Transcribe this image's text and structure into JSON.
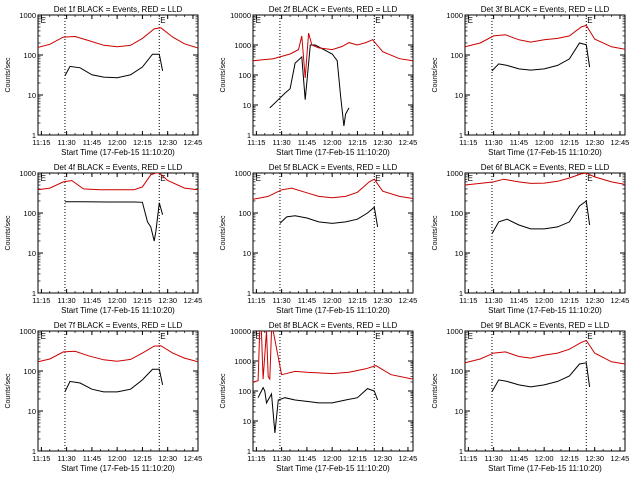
{
  "chart_data": [
    {
      "type": "line",
      "title": "Det 1f BLACK = Events, RED = LLD",
      "xlabel": "Start Time (17-Feb-15 11:10:20)",
      "ylabel": "Counts/sec",
      "y_scale": "log",
      "ylim": [
        1,
        1000
      ],
      "xlim": [
        "11:13",
        "12:48"
      ],
      "x_ticks": [
        "11:15",
        "11:30",
        "11:45",
        "12:00",
        "12:15",
        "12:30",
        "12:45"
      ],
      "y_ticks": [
        "1",
        "10",
        "100",
        "1000"
      ],
      "vertical_dotted_lines": [
        "11:29",
        "12:25"
      ],
      "markers": [
        {
          "label": "E",
          "x": "11:14"
        },
        {
          "label": "E",
          "x": "12:25"
        }
      ],
      "series": [
        {
          "color": "#000000",
          "x": [
            "11:29",
            "11:32",
            "11:38",
            "11:45",
            "11:52",
            "12:00",
            "12:08",
            "12:15",
            "12:21",
            "12:25",
            "12:27"
          ],
          "values": [
            30,
            52,
            48,
            32,
            28,
            27,
            32,
            50,
            105,
            105,
            40
          ]
        },
        {
          "color": "#cc0000",
          "x": [
            "11:13",
            "11:20",
            "11:28",
            "11:35",
            "11:43",
            "11:52",
            "12:00",
            "12:08",
            "12:15",
            "12:22",
            "12:26",
            "12:33",
            "12:40",
            "12:48"
          ],
          "values": [
            155,
            185,
            280,
            290,
            230,
            175,
            160,
            175,
            260,
            450,
            480,
            280,
            190,
            150
          ]
        }
      ]
    },
    {
      "type": "line",
      "title": "Det 2f BLACK = Events, RED = LLD",
      "xlabel": "Start Time (17-Feb-15 11:10:20)",
      "ylabel": "Counts/sec",
      "y_scale": "log",
      "ylim": [
        1,
        10000
      ],
      "xlim": [
        "11:13",
        "12:48"
      ],
      "x_ticks": [
        "11:15",
        "11:30",
        "11:45",
        "12:00",
        "12:15",
        "12:30",
        "12:45"
      ],
      "y_ticks": [
        "1",
        "10",
        "100",
        "1000",
        "10000"
      ],
      "vertical_dotted_lines": [
        "11:29",
        "12:25"
      ],
      "markers": [
        {
          "label": "E",
          "x": "11:14"
        },
        {
          "label": "E",
          "x": "12:25"
        }
      ],
      "series": [
        {
          "color": "#000000",
          "x": [
            "11:23",
            "11:28",
            "11:32",
            "11:35",
            "11:38",
            "11:42",
            "11:44",
            "11:45",
            "11:47",
            "11:50",
            "11:55",
            "12:00",
            "12:03",
            "12:05",
            "12:07",
            "12:08",
            "12:10"
          ],
          "values": [
            8,
            15,
            25,
            35,
            250,
            400,
            15,
            60,
            1000,
            1000,
            700,
            500,
            300,
            20,
            2,
            5,
            8
          ]
        },
        {
          "color": "#cc0000",
          "x": [
            "11:13",
            "11:25",
            "11:35",
            "11:40",
            "11:42",
            "11:44",
            "11:46",
            "11:48",
            "11:52",
            "12:00",
            "12:06",
            "12:10",
            "12:15",
            "12:20",
            "12:24",
            "12:30",
            "12:40",
            "12:48"
          ],
          "values": [
            300,
            350,
            500,
            700,
            2000,
            80,
            2500,
            1000,
            800,
            700,
            900,
            1200,
            1000,
            1200,
            1500,
            600,
            350,
            300
          ]
        }
      ]
    },
    {
      "type": "line",
      "title": "Det 3f BLACK = Events, RED = LLD",
      "xlabel": "Start Time (17-Feb-15 11:10:20)",
      "ylabel": "Counts/sec",
      "y_scale": "log",
      "ylim": [
        1,
        1000
      ],
      "xlim": [
        "11:13",
        "12:48"
      ],
      "x_ticks": [
        "11:15",
        "11:30",
        "11:45",
        "12:00",
        "12:15",
        "12:30",
        "12:45"
      ],
      "y_ticks": [
        "1",
        "10",
        "100",
        "1000"
      ],
      "vertical_dotted_lines": [
        "11:29",
        "12:25"
      ],
      "markers": [
        {
          "label": "E",
          "x": "11:14"
        },
        {
          "label": "E",
          "x": "12:25"
        }
      ],
      "series": [
        {
          "color": "#000000",
          "x": [
            "11:29",
            "11:33",
            "11:38",
            "11:45",
            "11:52",
            "12:00",
            "12:08",
            "12:15",
            "12:21",
            "12:25",
            "12:27"
          ],
          "values": [
            40,
            60,
            55,
            45,
            42,
            45,
            55,
            80,
            200,
            180,
            50
          ]
        },
        {
          "color": "#cc0000",
          "x": [
            "11:13",
            "11:22",
            "11:30",
            "11:37",
            "11:45",
            "11:52",
            "12:00",
            "12:08",
            "12:15",
            "12:22",
            "12:25",
            "12:30",
            "12:40",
            "12:48"
          ],
          "values": [
            160,
            200,
            300,
            320,
            240,
            210,
            240,
            260,
            300,
            500,
            550,
            250,
            160,
            140
          ]
        }
      ]
    },
    {
      "type": "line",
      "title": "Det 4f BLACK = Events, RED = LLD",
      "xlabel": "Start Time (17-Feb-15 11:10:20)",
      "ylabel": "Counts/sec",
      "y_scale": "log",
      "ylim": [
        1,
        1000
      ],
      "xlim": [
        "11:13",
        "12:48"
      ],
      "x_ticks": [
        "11:15",
        "11:30",
        "11:45",
        "12:00",
        "12:15",
        "12:30",
        "12:45"
      ],
      "y_ticks": [
        "1",
        "10",
        "100",
        "1000"
      ],
      "vertical_dotted_lines": [
        "11:29",
        "12:25"
      ],
      "markers": [
        {
          "label": "E",
          "x": "11:14"
        },
        {
          "label": "E",
          "x": "12:25"
        }
      ],
      "series": [
        {
          "color": "#000000",
          "x": [
            "11:29",
            "11:40",
            "11:55",
            "12:10",
            "12:15",
            "12:18",
            "12:20",
            "12:22",
            "12:23",
            "12:25",
            "12:27"
          ],
          "values": [
            190,
            190,
            188,
            188,
            185,
            60,
            45,
            20,
            35,
            180,
            90
          ]
        },
        {
          "color": "#cc0000",
          "x": [
            "11:13",
            "11:20",
            "11:28",
            "11:33",
            "11:40",
            "11:50",
            "12:00",
            "12:10",
            "12:15",
            "12:20",
            "12:23",
            "12:25",
            "12:30",
            "12:40",
            "12:48"
          ],
          "values": [
            380,
            420,
            600,
            650,
            400,
            380,
            380,
            380,
            450,
            900,
            1000,
            1000,
            650,
            420,
            380
          ]
        }
      ]
    },
    {
      "type": "line",
      "title": "Det 5f BLACK = Events, RED = LLD",
      "xlabel": "Start Time (17-Feb-15 11:10:20)",
      "ylabel": "Counts/sec",
      "y_scale": "log",
      "ylim": [
        1,
        1000
      ],
      "xlim": [
        "11:13",
        "12:48"
      ],
      "x_ticks": [
        "11:15",
        "11:30",
        "11:45",
        "12:00",
        "12:15",
        "12:30",
        "12:45"
      ],
      "y_ticks": [
        "1",
        "10",
        "100",
        "1000"
      ],
      "vertical_dotted_lines": [
        "11:29",
        "12:25"
      ],
      "markers": [
        {
          "label": "E",
          "x": "11:14"
        },
        {
          "label": "E",
          "x": "12:25"
        }
      ],
      "series": [
        {
          "color": "#000000",
          "x": [
            "11:29",
            "11:33",
            "11:38",
            "11:45",
            "11:52",
            "12:00",
            "12:08",
            "12:15",
            "12:21",
            "12:25",
            "12:27"
          ],
          "values": [
            55,
            80,
            85,
            75,
            60,
            55,
            60,
            70,
            100,
            140,
            45
          ]
        },
        {
          "color": "#cc0000",
          "x": [
            "11:13",
            "11:22",
            "11:30",
            "11:36",
            "11:45",
            "11:52",
            "12:00",
            "12:08",
            "12:15",
            "12:22",
            "12:25",
            "12:30",
            "12:40",
            "12:48"
          ],
          "values": [
            220,
            260,
            380,
            420,
            320,
            260,
            240,
            260,
            330,
            600,
            700,
            350,
            260,
            230
          ]
        }
      ]
    },
    {
      "type": "line",
      "title": "Det 6f BLACK = Events, RED = LLD",
      "xlabel": "Start Time (17-Feb-15 11:10:20)",
      "ylabel": "Counts/sec",
      "y_scale": "log",
      "ylim": [
        1,
        1000
      ],
      "xlim": [
        "11:13",
        "12:48"
      ],
      "x_ticks": [
        "11:15",
        "11:30",
        "11:45",
        "12:00",
        "12:15",
        "12:30",
        "12:45"
      ],
      "y_ticks": [
        "1",
        "10",
        "100",
        "1000"
      ],
      "vertical_dotted_lines": [
        "11:29",
        "12:25"
      ],
      "markers": [
        {
          "label": "E",
          "x": "11:14"
        },
        {
          "label": "E",
          "x": "12:25"
        }
      ],
      "series": [
        {
          "color": "#000000",
          "x": [
            "11:29",
            "11:33",
            "11:38",
            "11:45",
            "11:52",
            "12:00",
            "12:08",
            "12:15",
            "12:21",
            "12:25",
            "12:27"
          ],
          "values": [
            30,
            60,
            70,
            50,
            40,
            40,
            45,
            60,
            150,
            200,
            50
          ]
        },
        {
          "color": "#cc0000",
          "x": [
            "11:13",
            "11:22",
            "11:30",
            "11:36",
            "11:45",
            "11:52",
            "12:00",
            "12:08",
            "12:15",
            "12:22",
            "12:25",
            "12:30",
            "12:40",
            "12:48"
          ],
          "values": [
            500,
            550,
            600,
            700,
            600,
            550,
            560,
            620,
            750,
            950,
            1000,
            800,
            600,
            520
          ]
        }
      ]
    },
    {
      "type": "line",
      "title": "Det 7f BLACK = Events, RED = LLD",
      "xlabel": "Start Time (17-Feb-15 11:10:20)",
      "ylabel": "Counts/sec",
      "y_scale": "log",
      "ylim": [
        1,
        1000
      ],
      "xlim": [
        "11:13",
        "12:48"
      ],
      "x_ticks": [
        "11:15",
        "11:30",
        "11:45",
        "12:00",
        "12:15",
        "12:30",
        "12:45"
      ],
      "y_ticks": [
        "1",
        "10",
        "100",
        "1000"
      ],
      "vertical_dotted_lines": [
        "11:29",
        "12:25"
      ],
      "markers": [
        {
          "label": "E",
          "x": "11:14"
        },
        {
          "label": "E",
          "x": "12:25"
        }
      ],
      "series": [
        {
          "color": "#000000",
          "x": [
            "11:29",
            "11:32",
            "11:38",
            "11:45",
            "11:52",
            "12:00",
            "12:08",
            "12:15",
            "12:21",
            "12:25",
            "12:27"
          ],
          "values": [
            30,
            55,
            50,
            35,
            30,
            30,
            35,
            60,
            110,
            110,
            45
          ]
        },
        {
          "color": "#cc0000",
          "x": [
            "11:13",
            "11:20",
            "11:28",
            "11:35",
            "11:43",
            "11:52",
            "12:00",
            "12:08",
            "12:15",
            "12:22",
            "12:26",
            "12:33",
            "12:40",
            "12:48"
          ],
          "values": [
            170,
            200,
            300,
            310,
            240,
            190,
            175,
            195,
            280,
            420,
            430,
            280,
            210,
            170
          ]
        }
      ]
    },
    {
      "type": "line",
      "title": "Det 8f BLACK = Events, RED = LLD",
      "xlabel": "Start Time (17-Feb-15 11:10:20)",
      "ylabel": "Counts/sec",
      "y_scale": "log",
      "ylim": [
        1,
        10000
      ],
      "xlim": [
        "11:13",
        "12:48"
      ],
      "x_ticks": [
        "11:15",
        "11:30",
        "11:45",
        "12:00",
        "12:15",
        "12:30",
        "12:45"
      ],
      "y_ticks": [
        "1",
        "10",
        "100",
        "1000",
        "10000"
      ],
      "vertical_dotted_lines": [
        "11:29",
        "12:25"
      ],
      "markers": [
        {
          "label": "E",
          "x": "11:14"
        },
        {
          "label": "E",
          "x": "12:25"
        }
      ],
      "series": [
        {
          "color": "#000000",
          "x": [
            "11:16",
            "11:19",
            "11:20",
            "11:21",
            "11:24",
            "11:26",
            "11:28",
            "11:32",
            "11:38",
            "11:45",
            "11:52",
            "12:00",
            "12:08",
            "12:15",
            "12:21",
            "12:25",
            "12:27"
          ],
          "values": [
            60,
            130,
            100,
            40,
            80,
            4,
            50,
            60,
            50,
            45,
            40,
            40,
            50,
            60,
            120,
            100,
            50
          ]
        },
        {
          "color": "#cc0000",
          "x": [
            "11:13",
            "11:16",
            "11:17",
            "11:18",
            "11:19",
            "11:21",
            "11:22",
            "11:23",
            "11:24",
            "11:25",
            "11:30",
            "11:38",
            "11:45",
            "12:00",
            "12:10",
            "12:20",
            "12:26",
            "12:35",
            "12:48"
          ],
          "values": [
            200,
            220,
            10000,
            10000,
            250,
            10000,
            300,
            250,
            10000,
            10000,
            350,
            450,
            420,
            380,
            420,
            550,
            700,
            350,
            250
          ]
        }
      ]
    },
    {
      "type": "line",
      "title": "Det 9f BLACK = Events, RED = LLD",
      "xlabel": "Start Time (17-Feb-15 11:10:20)",
      "ylabel": "Counts/sec",
      "y_scale": "log",
      "ylim": [
        1,
        1000
      ],
      "xlim": [
        "11:13",
        "12:48"
      ],
      "x_ticks": [
        "11:15",
        "11:30",
        "11:45",
        "12:00",
        "12:15",
        "12:30",
        "12:45"
      ],
      "y_ticks": [
        "1",
        "10",
        "100",
        "1000"
      ],
      "vertical_dotted_lines": [
        "11:29",
        "12:25"
      ],
      "markers": [
        {
          "label": "E",
          "x": "11:14"
        },
        {
          "label": "E",
          "x": "12:25"
        }
      ],
      "series": [
        {
          "color": "#000000",
          "x": [
            "11:29",
            "11:33",
            "11:38",
            "11:45",
            "11:52",
            "12:00",
            "12:08",
            "12:15",
            "12:21",
            "12:25",
            "12:27"
          ],
          "values": [
            30,
            60,
            55,
            45,
            40,
            45,
            55,
            75,
            150,
            160,
            40
          ]
        },
        {
          "color": "#cc0000",
          "x": [
            "11:13",
            "11:22",
            "11:30",
            "11:37",
            "11:45",
            "11:52",
            "12:00",
            "12:08",
            "12:15",
            "12:22",
            "12:25",
            "12:30",
            "12:40",
            "12:48"
          ],
          "values": [
            160,
            200,
            280,
            300,
            230,
            210,
            250,
            280,
            350,
            520,
            580,
            280,
            170,
            150
          ]
        }
      ]
    }
  ]
}
